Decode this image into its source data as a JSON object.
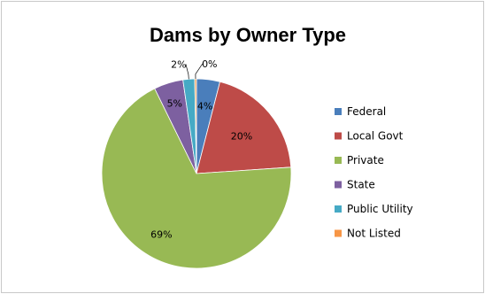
{
  "chart_data": {
    "type": "pie",
    "title": "Dams by Owner Type",
    "legend_position": "right",
    "series": [
      {
        "values": [
          4,
          20,
          69,
          5,
          2,
          0
        ],
        "labels": [
          "4%",
          "20%",
          "69%",
          "5%",
          "2%",
          "0%"
        ]
      }
    ],
    "categories": [
      "Federal",
      "Local Govt",
      "Private",
      "State",
      "Public Utility",
      "Not Listed"
    ],
    "colors": [
      "#4a7ebb",
      "#be4b48",
      "#98b954",
      "#7d60a0",
      "#46aac5",
      "#f79646"
    ]
  }
}
